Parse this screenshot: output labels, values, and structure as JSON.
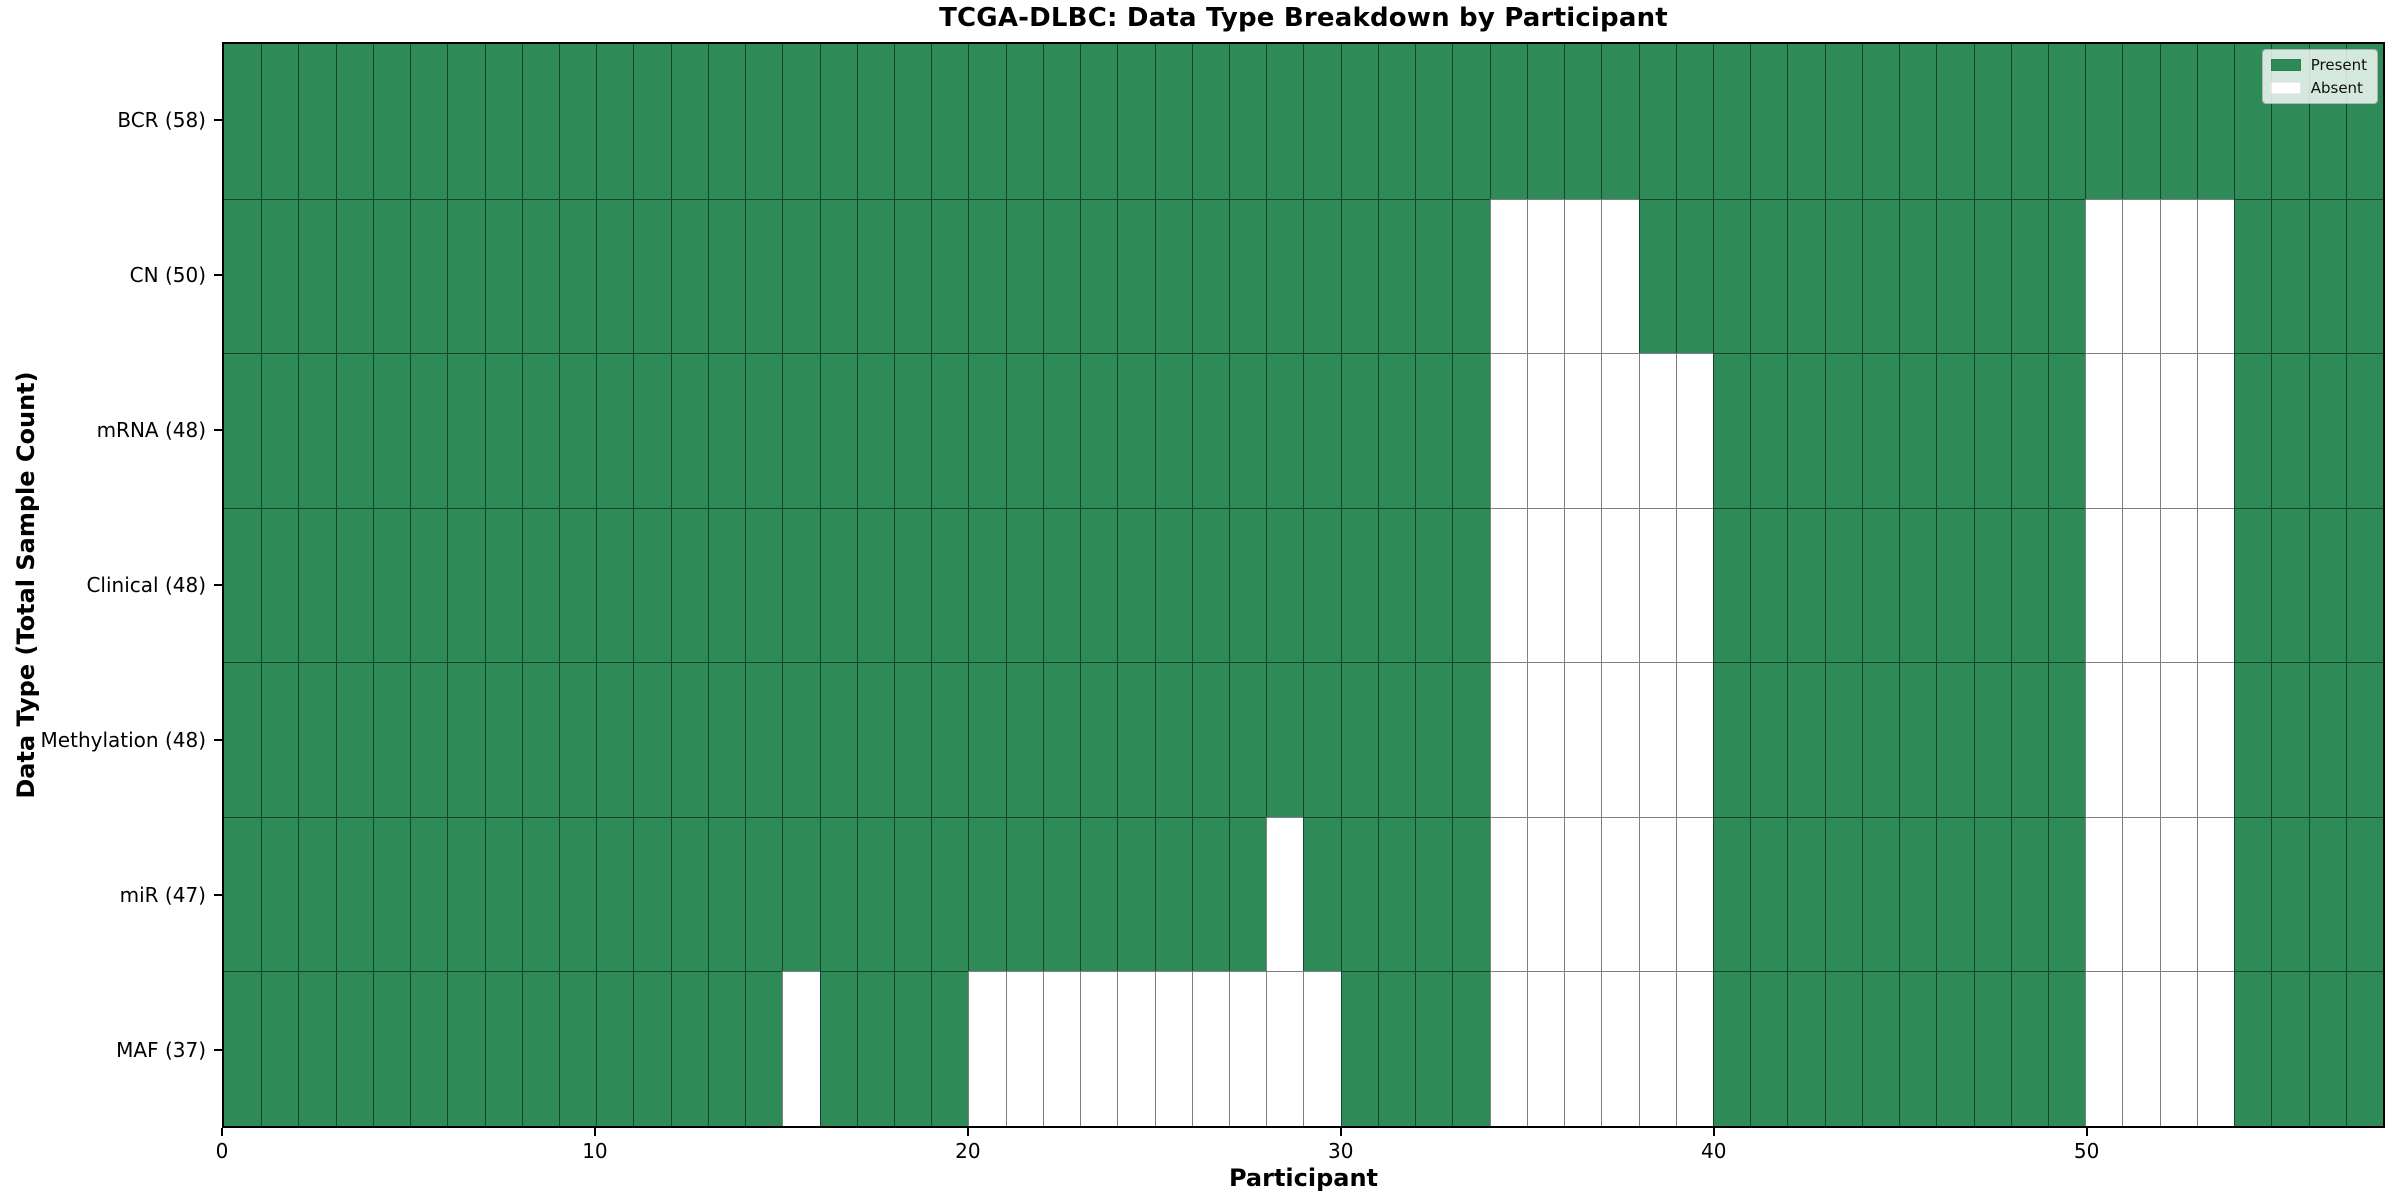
{
  "title": "TCGA-DLBC: Data Type Breakdown by Participant",
  "chart_data": {
    "type": "heatmap",
    "title": "TCGA-DLBC: Data Type Breakdown by Participant",
    "xlabel": "Participant",
    "ylabel": "Data Type (Total Sample Count)",
    "n_participants": 58,
    "x_ticks": [
      0,
      10,
      20,
      30,
      40,
      50
    ],
    "x_range": [
      0,
      58
    ],
    "grid": true,
    "rows": [
      {
        "label": "BCR (58)",
        "data_type": "BCR",
        "total": 58,
        "absent_participants": []
      },
      {
        "label": "CN (50)",
        "data_type": "CN",
        "total": 50,
        "absent_participants": [
          34,
          35,
          36,
          37,
          50,
          51,
          52,
          53
        ]
      },
      {
        "label": "mRNA (48)",
        "data_type": "mRNA",
        "total": 48,
        "absent_participants": [
          34,
          35,
          36,
          37,
          38,
          39,
          50,
          51,
          52,
          53
        ]
      },
      {
        "label": "Clinical (48)",
        "data_type": "Clinical",
        "total": 48,
        "absent_participants": [
          34,
          35,
          36,
          37,
          38,
          39,
          50,
          51,
          52,
          53
        ]
      },
      {
        "label": "Methylation (48)",
        "data_type": "Methylation",
        "total": 48,
        "absent_participants": [
          34,
          35,
          36,
          37,
          38,
          39,
          50,
          51,
          52,
          53
        ]
      },
      {
        "label": "miR (47)",
        "data_type": "miR",
        "total": 47,
        "absent_participants": [
          28,
          34,
          35,
          36,
          37,
          38,
          39,
          50,
          51,
          52,
          53
        ]
      },
      {
        "label": "MAF (37)",
        "data_type": "MAF",
        "total": 37,
        "absent_participants": [
          15,
          20,
          21,
          22,
          23,
          24,
          25,
          26,
          27,
          28,
          29,
          34,
          35,
          36,
          37,
          38,
          39,
          50,
          51,
          52,
          53
        ]
      }
    ],
    "legend": {
      "position": "upper right",
      "entries": [
        {
          "label": "Present",
          "color": "#2e8b57"
        },
        {
          "label": "Absent",
          "color": "#ffffff"
        }
      ]
    },
    "colors": {
      "present": "#2e8b57",
      "absent": "#ffffff",
      "gridline": "rgba(0,0,0,0.5)"
    }
  }
}
